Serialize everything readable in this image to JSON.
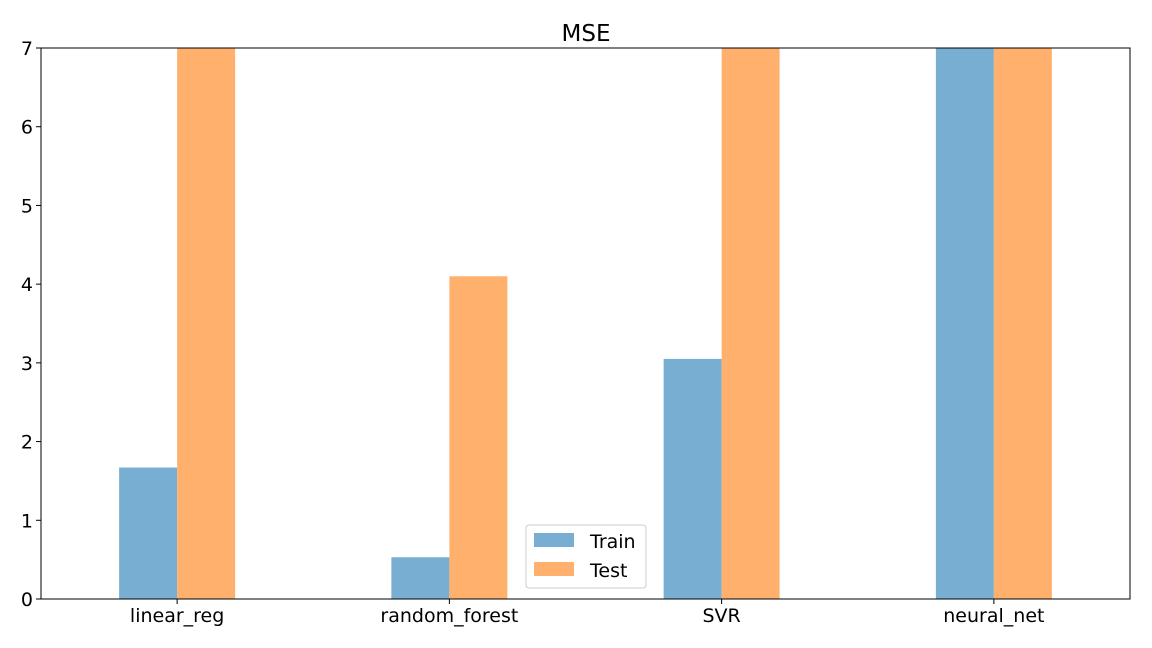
{
  "chart_data": {
    "type": "bar",
    "title": "MSE",
    "xlabel": "",
    "ylabel": "",
    "categories": [
      "linear_reg",
      "random_forest",
      "SVR",
      "neural_net"
    ],
    "series": [
      {
        "name": "Train",
        "color": "#77aed1",
        "values": [
          1.67,
          0.53,
          3.05,
          7.0
        ]
      },
      {
        "name": "Test",
        "color": "#ffb06d",
        "values": [
          7.0,
          4.1,
          7.0,
          7.0
        ]
      }
    ],
    "ylim": [
      0,
      7
    ],
    "yticks": [
      "0",
      "1",
      "2",
      "3",
      "4",
      "5",
      "6",
      "7"
    ],
    "grid": false,
    "legend_position": "bottom-center"
  }
}
